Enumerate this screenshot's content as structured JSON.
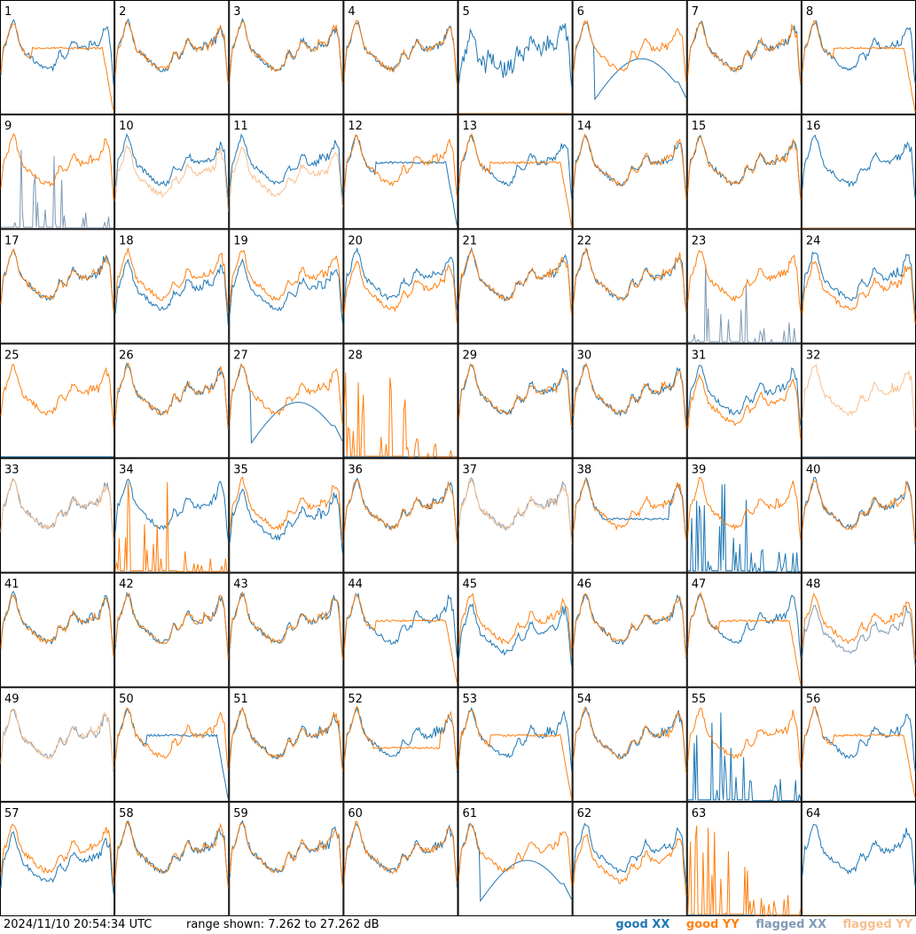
{
  "chart_data": {
    "type": "line",
    "grid": {
      "rows": 8,
      "cols": 8
    },
    "tiles": [
      {
        "id": "1",
        "xx": "good",
        "yy": "good",
        "xx_shape": "normal",
        "yy_shape": "dropoff"
      },
      {
        "id": "2",
        "xx": "good",
        "yy": "good",
        "xx_shape": "normal",
        "yy_shape": "normal"
      },
      {
        "id": "3",
        "xx": "good",
        "yy": "good",
        "xx_shape": "normal",
        "yy_shape": "normal"
      },
      {
        "id": "4",
        "xx": "good",
        "yy": "good",
        "xx_shape": "normal",
        "yy_shape": "normal"
      },
      {
        "id": "5",
        "xx": "good",
        "yy": "flagged",
        "xx_shape": "noisy",
        "yy_shape": "flat"
      },
      {
        "id": "6",
        "xx": "good",
        "yy": "good",
        "xx_shape": "hump",
        "yy_shape": "normal"
      },
      {
        "id": "7",
        "xx": "good",
        "yy": "good",
        "xx_shape": "normal",
        "yy_shape": "normal"
      },
      {
        "id": "8",
        "xx": "good",
        "yy": "good",
        "xx_shape": "normal",
        "yy_shape": "dropoff"
      },
      {
        "id": "9",
        "xx": "flagged",
        "yy": "good",
        "xx_shape": "spikes",
        "yy_shape": "normal"
      },
      {
        "id": "10",
        "xx": "good",
        "yy": "flagged",
        "xx_shape": "normal",
        "yy_shape": "lower"
      },
      {
        "id": "11",
        "xx": "good",
        "yy": "flagged",
        "xx_shape": "normal",
        "yy_shape": "lower"
      },
      {
        "id": "12",
        "xx": "good",
        "yy": "good",
        "xx_shape": "dropoff",
        "yy_shape": "normal"
      },
      {
        "id": "13",
        "xx": "good",
        "yy": "good",
        "xx_shape": "normal",
        "yy_shape": "dropoff"
      },
      {
        "id": "14",
        "xx": "good",
        "yy": "good",
        "xx_shape": "normal",
        "yy_shape": "normal"
      },
      {
        "id": "15",
        "xx": "good",
        "yy": "good",
        "xx_shape": "normal",
        "yy_shape": "normal"
      },
      {
        "id": "16",
        "xx": "good",
        "yy": "flagged",
        "xx_shape": "normal",
        "yy_shape": "flat"
      },
      {
        "id": "17",
        "xx": "good",
        "yy": "good",
        "xx_shape": "normal",
        "yy_shape": "normal"
      },
      {
        "id": "18",
        "xx": "good",
        "yy": "good",
        "xx_shape": "lower",
        "yy_shape": "normal"
      },
      {
        "id": "19",
        "xx": "good",
        "yy": "good",
        "xx_shape": "lower",
        "yy_shape": "normal"
      },
      {
        "id": "20",
        "xx": "good",
        "yy": "good",
        "xx_shape": "normal",
        "yy_shape": "lower"
      },
      {
        "id": "21",
        "xx": "good",
        "yy": "good",
        "xx_shape": "normal",
        "yy_shape": "normal"
      },
      {
        "id": "22",
        "xx": "good",
        "yy": "good",
        "xx_shape": "normal",
        "yy_shape": "normal"
      },
      {
        "id": "23",
        "xx": "flagged",
        "yy": "good",
        "xx_shape": "spikes",
        "yy_shape": "normal"
      },
      {
        "id": "24",
        "xx": "good",
        "yy": "good",
        "xx_shape": "normal",
        "yy_shape": "lower"
      },
      {
        "id": "25",
        "xx": "good",
        "yy": "good",
        "xx_shape": "flat",
        "yy_shape": "normal"
      },
      {
        "id": "26",
        "xx": "good",
        "yy": "good",
        "xx_shape": "normal",
        "yy_shape": "normal"
      },
      {
        "id": "27",
        "xx": "good",
        "yy": "good",
        "xx_shape": "hump",
        "yy_shape": "normal"
      },
      {
        "id": "28",
        "xx": "good",
        "yy": "good",
        "xx_shape": "flat",
        "yy_shape": "spikes"
      },
      {
        "id": "29",
        "xx": "good",
        "yy": "good",
        "xx_shape": "normal",
        "yy_shape": "normal"
      },
      {
        "id": "30",
        "xx": "good",
        "yy": "good",
        "xx_shape": "normal",
        "yy_shape": "normal"
      },
      {
        "id": "31",
        "xx": "good",
        "yy": "good",
        "xx_shape": "normal",
        "yy_shape": "lower"
      },
      {
        "id": "32",
        "xx": "flagged",
        "yy": "flagged",
        "xx_shape": "flat",
        "yy_shape": "normal"
      },
      {
        "id": "33",
        "xx": "flagged",
        "yy": "flagged",
        "xx_shape": "normal",
        "yy_shape": "normal"
      },
      {
        "id": "34",
        "xx": "good",
        "yy": "good",
        "xx_shape": "normal",
        "yy_shape": "spikes"
      },
      {
        "id": "35",
        "xx": "good",
        "yy": "good",
        "xx_shape": "lower",
        "yy_shape": "normal"
      },
      {
        "id": "36",
        "xx": "good",
        "yy": "good",
        "xx_shape": "normal",
        "yy_shape": "normal"
      },
      {
        "id": "37",
        "xx": "flagged",
        "yy": "flagged",
        "xx_shape": "normal",
        "yy_shape": "normal"
      },
      {
        "id": "38",
        "xx": "good",
        "yy": "good",
        "xx_shape": "plateau",
        "yy_shape": "normal"
      },
      {
        "id": "39",
        "xx": "good",
        "yy": "good",
        "xx_shape": "spikes",
        "yy_shape": "normal"
      },
      {
        "id": "40",
        "xx": "good",
        "yy": "good",
        "xx_shape": "normal",
        "yy_shape": "normal"
      },
      {
        "id": "41",
        "xx": "good",
        "yy": "good",
        "xx_shape": "normal",
        "yy_shape": "normal"
      },
      {
        "id": "42",
        "xx": "good",
        "yy": "good",
        "xx_shape": "normal",
        "yy_shape": "normal"
      },
      {
        "id": "43",
        "xx": "good",
        "yy": "good",
        "xx_shape": "normal",
        "yy_shape": "normal"
      },
      {
        "id": "44",
        "xx": "good",
        "yy": "good",
        "xx_shape": "normal",
        "yy_shape": "dropoff"
      },
      {
        "id": "45",
        "xx": "good",
        "yy": "good",
        "xx_shape": "lower",
        "yy_shape": "normal"
      },
      {
        "id": "46",
        "xx": "good",
        "yy": "good",
        "xx_shape": "normal",
        "yy_shape": "normal"
      },
      {
        "id": "47",
        "xx": "good",
        "yy": "good",
        "xx_shape": "normal",
        "yy_shape": "dropoff"
      },
      {
        "id": "48",
        "xx": "flagged",
        "yy": "good",
        "xx_shape": "lower",
        "yy_shape": "normal"
      },
      {
        "id": "49",
        "xx": "flagged",
        "yy": "flagged",
        "xx_shape": "normal",
        "yy_shape": "normal"
      },
      {
        "id": "50",
        "xx": "good",
        "yy": "good",
        "xx_shape": "dropoff",
        "yy_shape": "normal"
      },
      {
        "id": "51",
        "xx": "good",
        "yy": "good",
        "xx_shape": "normal",
        "yy_shape": "normal"
      },
      {
        "id": "52",
        "xx": "good",
        "yy": "good",
        "xx_shape": "normal",
        "yy_shape": "plateau"
      },
      {
        "id": "53",
        "xx": "good",
        "yy": "good",
        "xx_shape": "normal",
        "yy_shape": "dropoff"
      },
      {
        "id": "54",
        "xx": "good",
        "yy": "good",
        "xx_shape": "normal",
        "yy_shape": "normal"
      },
      {
        "id": "55",
        "xx": "good",
        "yy": "good",
        "xx_shape": "spikes",
        "yy_shape": "normal"
      },
      {
        "id": "56",
        "xx": "good",
        "yy": "good",
        "xx_shape": "normal",
        "yy_shape": "dropoff"
      },
      {
        "id": "57",
        "xx": "good",
        "yy": "good",
        "xx_shape": "lower",
        "yy_shape": "normal"
      },
      {
        "id": "58",
        "xx": "good",
        "yy": "good",
        "xx_shape": "normal",
        "yy_shape": "normal"
      },
      {
        "id": "59",
        "xx": "good",
        "yy": "good",
        "xx_shape": "normal",
        "yy_shape": "normal"
      },
      {
        "id": "60",
        "xx": "good",
        "yy": "good",
        "xx_shape": "normal",
        "yy_shape": "normal"
      },
      {
        "id": "61",
        "xx": "good",
        "yy": "good",
        "xx_shape": "hump",
        "yy_shape": "normal"
      },
      {
        "id": "62",
        "xx": "good",
        "yy": "good",
        "xx_shape": "normal",
        "yy_shape": "lower"
      },
      {
        "id": "63",
        "xx": "good",
        "yy": "good",
        "xx_shape": "flat",
        "yy_shape": "spikes"
      },
      {
        "id": "64",
        "xx": "good",
        "yy": "flagged",
        "xx_shape": "normal",
        "yy_shape": "flat"
      }
    ],
    "legend_placement": "bottom-right",
    "grid_lines": false
  },
  "footer": {
    "timestamp": "2024/11/10 20:54:34 UTC",
    "range_text": "range shown: 7.262 to 27.262 dB"
  },
  "legend": {
    "good_xx": "good XX",
    "good_yy": "good YY",
    "flagged_xx": "flagged XX",
    "flagged_yy": "flagged YY"
  },
  "colors": {
    "good_xx": "#1f77b4",
    "good_yy": "#ff7f0e",
    "flagged_xx": "#7f9ab4",
    "flagged_yy": "#f7bf8f",
    "tile_border": "#000000"
  }
}
